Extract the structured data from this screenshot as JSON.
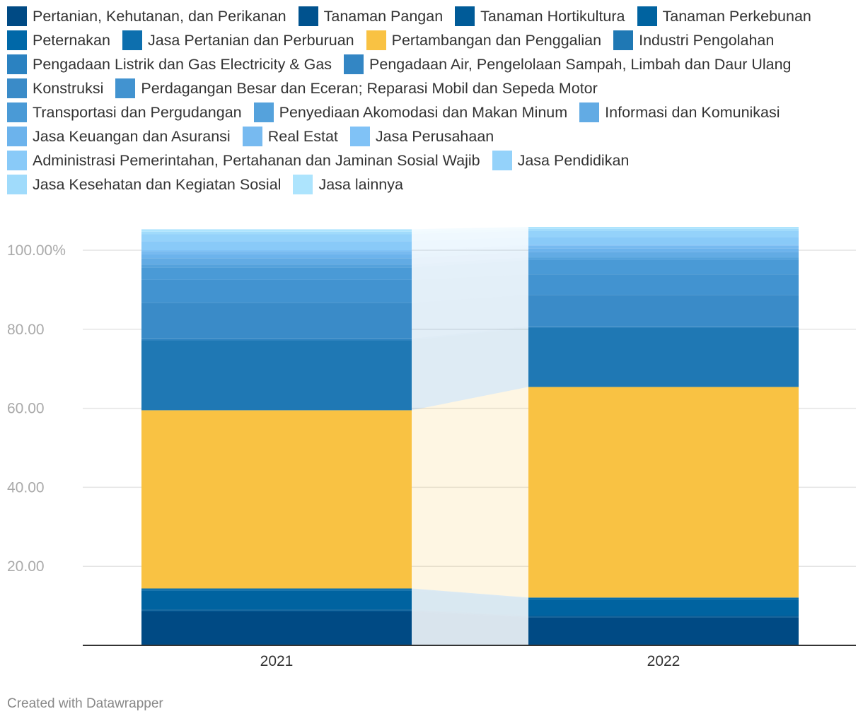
{
  "chart_data": {
    "type": "bar",
    "stacked": true,
    "categories": [
      "2021",
      "2022"
    ],
    "yticks": [
      "20.00",
      "40.00",
      "60.00",
      "80.00",
      "100.00%"
    ],
    "ytick_values": [
      20,
      40,
      60,
      80,
      100
    ],
    "ylim": [
      0,
      106
    ],
    "series": [
      {
        "name": "Pertanian, Kehutanan, dan Perikanan",
        "color": "#004a84",
        "values": [
          8.5,
          7.0
        ]
      },
      {
        "name": "Tanaman Pangan",
        "color": "#00528e",
        "values": [
          0.3,
          0.3
        ]
      },
      {
        "name": "Tanaman Hortikultura",
        "color": "#005b98",
        "values": [
          0.3,
          0.3
        ]
      },
      {
        "name": "Tanaman Perkebunan",
        "color": "#0063a0",
        "values": [
          4.8,
          4.0
        ]
      },
      {
        "name": "Peternakan",
        "color": "#0068a8",
        "values": [
          0.3,
          0.3
        ]
      },
      {
        "name": "Jasa Pertanian dan Perburuan",
        "color": "#0d6fae",
        "values": [
          0.2,
          0.2
        ]
      },
      {
        "name": "Pertambangan dan Penggalian",
        "color": "#f9c243",
        "values": [
          45.1,
          53.3
        ]
      },
      {
        "name": "Industri Pengolahan",
        "color": "#1f78b4",
        "values": [
          17.7,
          15.0
        ]
      },
      {
        "name": "Pengadaan Listrik dan Gas Electricity & Gas",
        "color": "#2b82c1",
        "values": [
          0.4,
          0.3
        ]
      },
      {
        "name": "Pengadaan Air, Pengelolaan Sampah, Limbah dan Daur Ulang",
        "color": "#3386c4",
        "values": [
          0.1,
          0.1
        ]
      },
      {
        "name": "Konstruksi",
        "color": "#3a8bc8",
        "values": [
          9.0,
          7.9
        ]
      },
      {
        "name": "Perdagangan Besar dan Eceran; Reparasi Mobil dan Sepeda Motor",
        "color": "#4293d0",
        "values": [
          5.8,
          5.2
        ]
      },
      {
        "name": "Transportasi dan Pergudangan",
        "color": "#4a9ad6",
        "values": [
          3.1,
          3.6
        ]
      },
      {
        "name": "Penyediaan Akomodasi dan Makan Minum",
        "color": "#55a2dc",
        "values": [
          0.8,
          0.7
        ]
      },
      {
        "name": "Informasi dan Komunikasi",
        "color": "#62abe4",
        "values": [
          1.6,
          1.4
        ]
      },
      {
        "name": "Jasa Keuangan dan Asuransi",
        "color": "#6cb3ec",
        "values": [
          1.0,
          0.9
        ]
      },
      {
        "name": "Real Estat",
        "color": "#77baf0",
        "values": [
          0.8,
          0.7
        ]
      },
      {
        "name": "Jasa Perusahaan",
        "color": "#80c2f6",
        "values": [
          0.2,
          0.2
        ]
      },
      {
        "name": "Administrasi Pemerintahan, Pertahanan dan Jaminan Sosial Wajib",
        "color": "#89caf8",
        "values": [
          2.3,
          1.9
        ]
      },
      {
        "name": "Jasa Pendidikan",
        "color": "#94d2fa",
        "values": [
          1.8,
          1.6
        ]
      },
      {
        "name": "Jasa Kesehatan dan Kegiatan Sosial",
        "color": "#a0dbfb",
        "values": [
          0.6,
          0.5
        ]
      },
      {
        "name": "Jasa lainnya",
        "color": "#ade4fd",
        "values": [
          0.6,
          0.5
        ]
      }
    ]
  },
  "credit": "Created with Datawrapper"
}
